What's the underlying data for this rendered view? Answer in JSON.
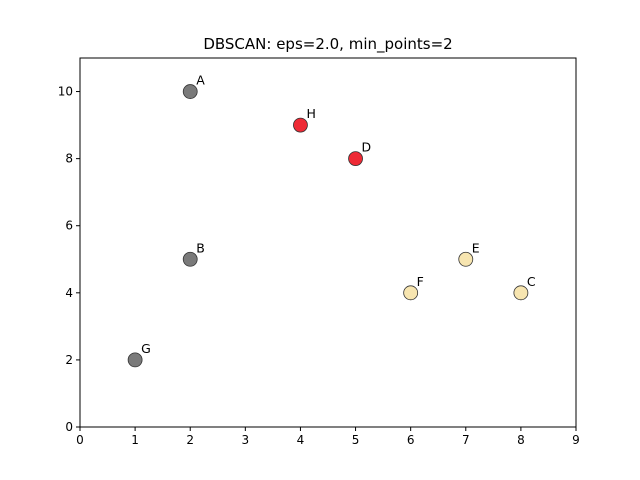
{
  "chart_data": {
    "type": "scatter",
    "title": "DBSCAN: eps=2.0, min_points=2",
    "xlabel": "",
    "ylabel": "",
    "xlim": [
      0,
      9
    ],
    "ylim": [
      0,
      11
    ],
    "xticks": [
      "0",
      "1",
      "2",
      "3",
      "4",
      "5",
      "6",
      "7",
      "8",
      "9"
    ],
    "yticks": [
      "0",
      "2",
      "4",
      "6",
      "8",
      "10"
    ],
    "grid": false,
    "points": [
      {
        "label": "A",
        "x": 2,
        "y": 10,
        "color": "#7a7a7a"
      },
      {
        "label": "H",
        "x": 4,
        "y": 9,
        "color": "#ee2a35"
      },
      {
        "label": "D",
        "x": 5,
        "y": 8,
        "color": "#ee2a35"
      },
      {
        "label": "B",
        "x": 2,
        "y": 5,
        "color": "#7a7a7a"
      },
      {
        "label": "E",
        "x": 7,
        "y": 5,
        "color": "#f7e5b0"
      },
      {
        "label": "F",
        "x": 6,
        "y": 4,
        "color": "#f7e5b0"
      },
      {
        "label": "C",
        "x": 8,
        "y": 4,
        "color": "#f7e5b0"
      },
      {
        "label": "G",
        "x": 1,
        "y": 2,
        "color": "#7a7a7a"
      }
    ]
  }
}
